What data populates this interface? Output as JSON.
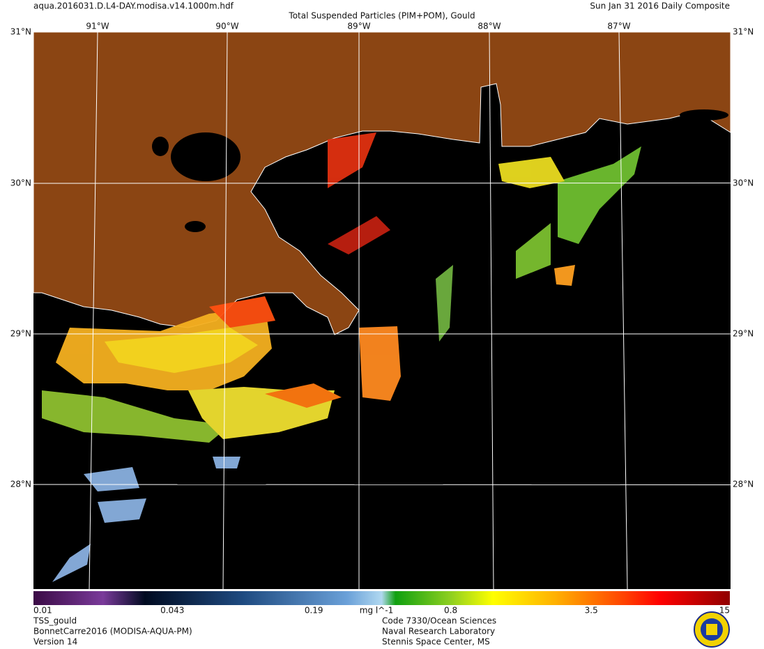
{
  "header": {
    "file": "aqua.2016031.D.L4-DAY.modisa.v14.1000m.hdf",
    "title": "Total Suspended Particles (PIM+POM), Gould",
    "date": "Sun Jan 31 2016 Daily Composite"
  },
  "graticule": {
    "lon_labels": [
      "91°W",
      "90°W",
      "89°W",
      "88°W",
      "87°W"
    ],
    "lat_labels": [
      "31°N",
      "30°N",
      "29°N",
      "28°N"
    ]
  },
  "colorbar": {
    "scale": "log",
    "range": [
      0.01,
      15
    ],
    "ticks": [
      0.01,
      0.043,
      0.19,
      0.8,
      3.5,
      15
    ],
    "unit": "mg l^-1"
  },
  "footer": {
    "left": [
      "TSS_gould",
      "BonnetCarre2016 (MODISA-AQUA-PM)",
      "Version 14"
    ],
    "center": [
      "Code 7330/Ocean Sciences",
      "Naval Research Laboratory",
      "Stennis Space Center, MS"
    ]
  }
}
